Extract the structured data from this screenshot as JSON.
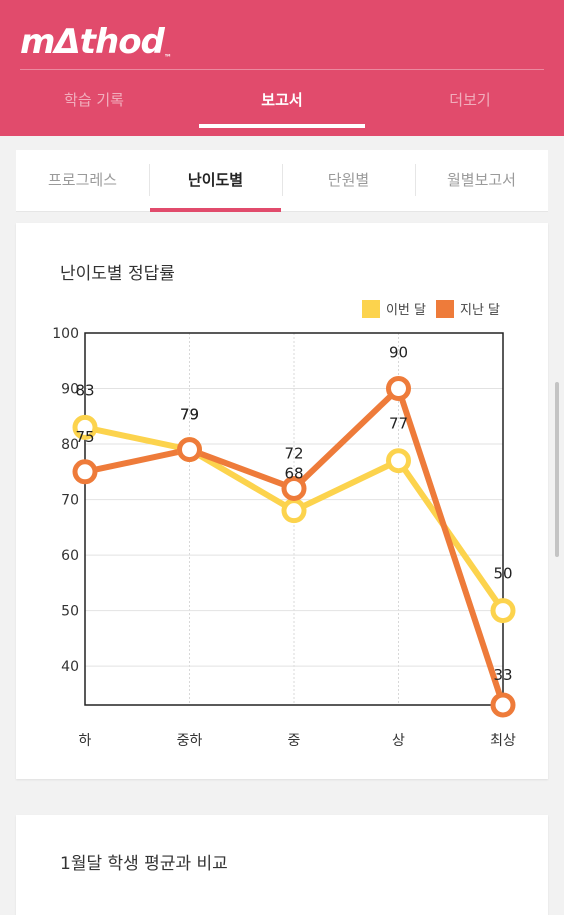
{
  "app": {
    "logo": "mΔthod",
    "tm": "™"
  },
  "nav": {
    "items": [
      "학습 기록",
      "보고서",
      "더보기"
    ],
    "active_index": 1
  },
  "tabs": {
    "items": [
      "프로그레스",
      "난이도별",
      "단원별",
      "월별보고서"
    ],
    "active_index": 1
  },
  "colors": {
    "brand": "#e14b6c",
    "this_month": "#fcd34d",
    "last_month": "#ee7b3a"
  },
  "chart_card": {
    "title": "난이도별 정답률"
  },
  "compare_card": {
    "title": "1월달 학생 평균과 비교"
  },
  "chart_data": {
    "type": "line",
    "title": "난이도별 정답률",
    "categories": [
      "하",
      "중하",
      "중",
      "상",
      "최상"
    ],
    "ylim": [
      33,
      100
    ],
    "yticks": [
      40,
      50,
      60,
      70,
      80,
      90,
      100
    ],
    "grid": true,
    "legend_position": "top-right",
    "series": [
      {
        "name": "이번 달",
        "color": "#fcd34d",
        "values": [
          83,
          79,
          68,
          77,
          50
        ]
      },
      {
        "name": "지난 달",
        "color": "#ee7b3a",
        "values": [
          75,
          79,
          72,
          90,
          33
        ]
      }
    ],
    "data_labels": true
  }
}
